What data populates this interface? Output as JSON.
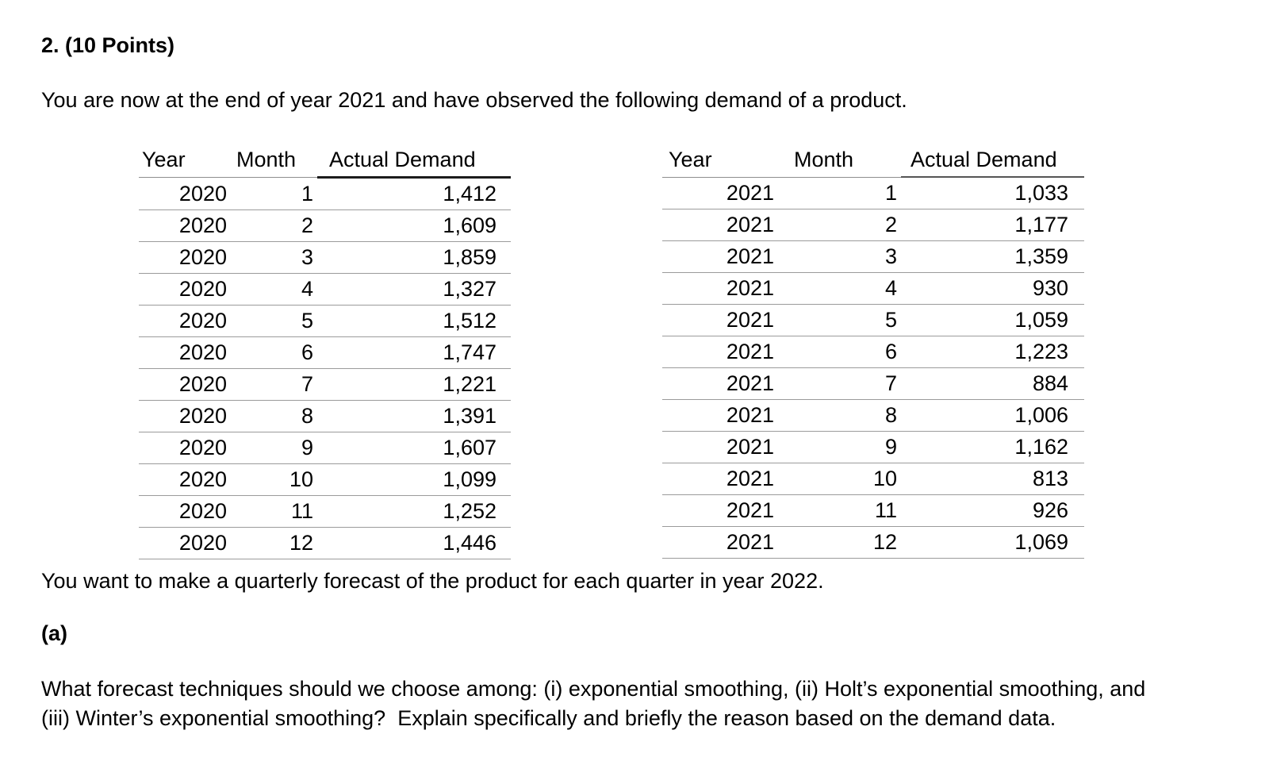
{
  "page": {
    "title": "2. (10 Points)",
    "intro": "You are now at the end of year 2021 and have observed the following demand of a product.",
    "note": "You want to make a quarterly forecast of the product for each quarter in year 2022.",
    "part_label": "(a)",
    "part_question": "What forecast techniques should we choose among: (i) exponential smoothing, (ii) Holt’s exponential smoothing, and (iii) Winter’s exponential smoothing?  Explain specifically and briefly the reason based on the demand data."
  },
  "tables": [
    {
      "name": "demand-2020",
      "columns": [
        "Year",
        "Month",
        "Actual Demand"
      ],
      "rows": [
        [
          "2020",
          "1",
          "1,412"
        ],
        [
          "2020",
          "2",
          "1,609"
        ],
        [
          "2020",
          "3",
          "1,859"
        ],
        [
          "2020",
          "4",
          "1,327"
        ],
        [
          "2020",
          "5",
          "1,512"
        ],
        [
          "2020",
          "6",
          "1,747"
        ],
        [
          "2020",
          "7",
          "1,221"
        ],
        [
          "2020",
          "8",
          "1,391"
        ],
        [
          "2020",
          "9",
          "1,607"
        ],
        [
          "2020",
          "10",
          "1,099"
        ],
        [
          "2020",
          "11",
          "1,252"
        ],
        [
          "2020",
          "12",
          "1,446"
        ]
      ]
    },
    {
      "name": "demand-2021",
      "columns": [
        "Year",
        "Month",
        "Actual Demand"
      ],
      "rows": [
        [
          "2021",
          "1",
          "1,033"
        ],
        [
          "2021",
          "2",
          "1,177"
        ],
        [
          "2021",
          "3",
          "1,359"
        ],
        [
          "2021",
          "4",
          "930"
        ],
        [
          "2021",
          "5",
          "1,059"
        ],
        [
          "2021",
          "6",
          "1,223"
        ],
        [
          "2021",
          "7",
          "884"
        ],
        [
          "2021",
          "8",
          "1,006"
        ],
        [
          "2021",
          "9",
          "1,162"
        ],
        [
          "2021",
          "10",
          "813"
        ],
        [
          "2021",
          "11",
          "926"
        ],
        [
          "2021",
          "12",
          "1,069"
        ]
      ]
    }
  ]
}
